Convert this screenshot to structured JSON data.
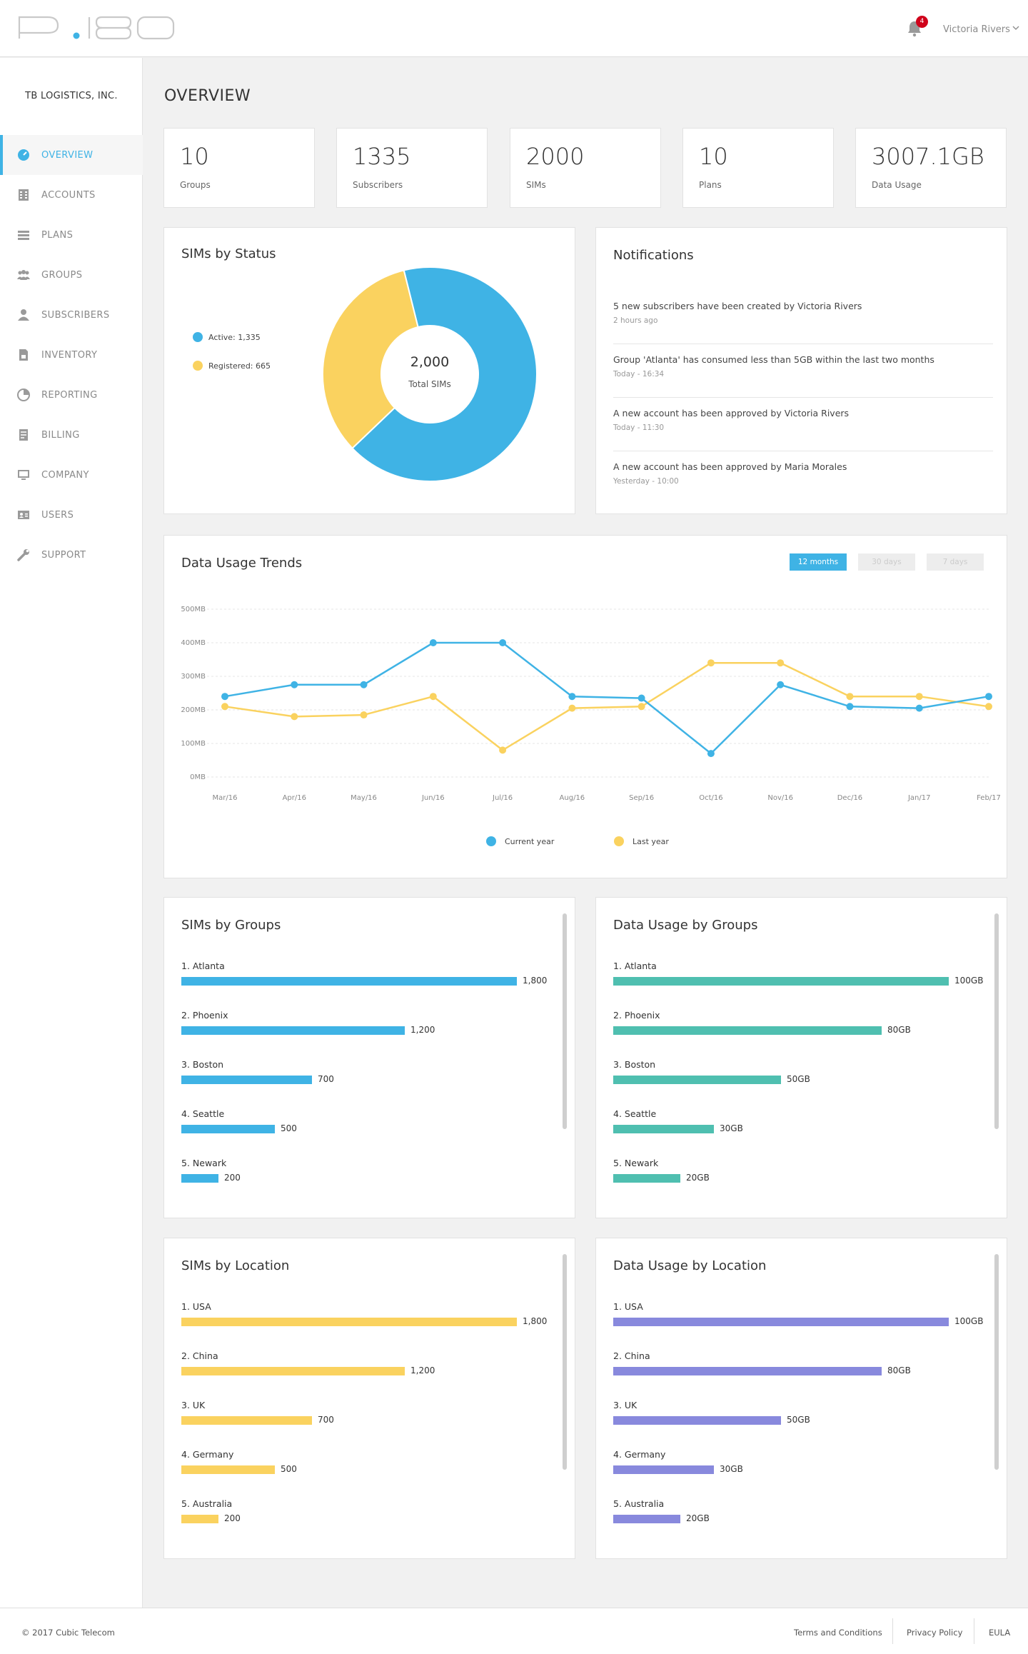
{
  "header": {
    "logo_text": "P.180",
    "notification_count": "4",
    "user_name": "Victoria Rivers"
  },
  "sidebar": {
    "company": "TB LOGISTICS, INC.",
    "items": [
      {
        "label": "OVERVIEW",
        "icon": "overview-icon",
        "active": true
      },
      {
        "label": "ACCOUNTS",
        "icon": "accounts-icon"
      },
      {
        "label": "PLANS",
        "icon": "plans-icon"
      },
      {
        "label": "GROUPS",
        "icon": "groups-icon"
      },
      {
        "label": "SUBSCRIBERS",
        "icon": "subscribers-icon"
      },
      {
        "label": "INVENTORY",
        "icon": "inventory-icon"
      },
      {
        "label": "REPORTING",
        "icon": "reporting-icon"
      },
      {
        "label": "BILLING",
        "icon": "billing-icon"
      },
      {
        "label": "COMPANY",
        "icon": "company-icon"
      },
      {
        "label": "USERS",
        "icon": "users-icon"
      },
      {
        "label": "SUPPORT",
        "icon": "support-icon"
      }
    ]
  },
  "page_title": "OVERVIEW",
  "stats": [
    {
      "value": "10",
      "label": "Groups"
    },
    {
      "value": "1335",
      "label": "Subscribers"
    },
    {
      "value": "2000",
      "label": "SIMs"
    },
    {
      "value": "10",
      "label": "Plans"
    },
    {
      "value": "3007.1GB",
      "label": "Data Usage"
    }
  ],
  "sims_by_status": {
    "title": "SIMs by Status",
    "legend": [
      {
        "label": "Active: 1,335",
        "color": "#3fb3e5"
      },
      {
        "label": "Registered: 665",
        "color": "#fad25f"
      }
    ],
    "center_value": "2,000",
    "center_label": "Total SIMs"
  },
  "notifications": {
    "title": "Notifications",
    "items": [
      {
        "text": "5 new subscribers have been created by Victoria Rivers",
        "time": "2 hours ago"
      },
      {
        "text": "Group 'Atlanta' has consumed less than 5GB within the last two months",
        "time": "Today - 16:34"
      },
      {
        "text": "A new account has been approved by Victoria Rivers",
        "time": "Today - 11:30"
      },
      {
        "text": "A new account has been approved by Maria Morales",
        "time": "Yesterday - 10:00"
      }
    ]
  },
  "trends": {
    "title": "Data Usage Trends",
    "tabs": [
      "12 months",
      "30 days",
      "7 days"
    ],
    "legend": [
      "Current year",
      "Last year"
    ]
  },
  "sims_by_groups": {
    "title": "SIMs by Groups",
    "items": [
      {
        "label": "1. Atlanta",
        "value": "1,800"
      },
      {
        "label": "2. Phoenix",
        "value": "1,200"
      },
      {
        "label": "3. Boston",
        "value": "700"
      },
      {
        "label": "4. Seattle",
        "value": "500"
      },
      {
        "label": "5. Newark",
        "value": "200"
      }
    ]
  },
  "data_by_groups": {
    "title": "Data Usage by Groups",
    "items": [
      {
        "label": "1. Atlanta",
        "value": "100GB"
      },
      {
        "label": "2. Phoenix",
        "value": "80GB"
      },
      {
        "label": "3. Boston",
        "value": "50GB"
      },
      {
        "label": "4. Seattle",
        "value": "30GB"
      },
      {
        "label": "5. Newark",
        "value": "20GB"
      }
    ]
  },
  "sims_by_location": {
    "title": "SIMs by Location",
    "items": [
      {
        "label": "1. USA",
        "value": "1,800"
      },
      {
        "label": "2. China",
        "value": "1,200"
      },
      {
        "label": "3. UK",
        "value": "700"
      },
      {
        "label": "4. Germany",
        "value": "500"
      },
      {
        "label": "5. Australia",
        "value": "200"
      }
    ]
  },
  "data_by_location": {
    "title": "Data Usage by Location",
    "items": [
      {
        "label": "1. USA",
        "value": "100GB"
      },
      {
        "label": "2. China",
        "value": "80GB"
      },
      {
        "label": "3. UK",
        "value": "50GB"
      },
      {
        "label": "4. Germany",
        "value": "30GB"
      },
      {
        "label": "5. Australia",
        "value": "20GB"
      }
    ]
  },
  "footer": {
    "copyright": "© 2017 Cubic Telecom",
    "links": [
      "Terms and Conditions",
      "Privacy Policy",
      "EULA"
    ]
  },
  "colors": {
    "accent": "#3fb3e5",
    "yellow": "#fad25f",
    "teal": "#4fbfb0",
    "purple": "#8889dd"
  },
  "chart_data": [
    {
      "type": "pie",
      "title": "SIMs by Status",
      "labels": [
        "Active",
        "Registered"
      ],
      "values": [
        1335,
        665
      ],
      "colors": [
        "#3fb3e5",
        "#fad25f"
      ]
    },
    {
      "type": "line",
      "title": "Data Usage Trends",
      "categories": [
        "Mar/16",
        "Apr/16",
        "May/16",
        "Jun/16",
        "Jul/16",
        "Aug/16",
        "Sep/16",
        "Oct/16",
        "Nov/16",
        "Dec/16",
        "Jan/17",
        "Feb/17"
      ],
      "yticks": [
        "0MB",
        "100MB",
        "200MB",
        "300MB",
        "400MB",
        "500MB"
      ],
      "ylim": [
        0,
        500
      ],
      "grid": true,
      "series": [
        {
          "name": "Current year",
          "color": "#3fb3e5",
          "values": [
            240,
            275,
            275,
            400,
            400,
            240,
            235,
            70,
            275,
            210,
            205,
            240
          ]
        },
        {
          "name": "Last year",
          "color": "#fad25f",
          "values": [
            210,
            180,
            185,
            240,
            80,
            205,
            210,
            340,
            340,
            240,
            240,
            210
          ]
        }
      ]
    },
    {
      "type": "bar",
      "title": "SIMs by Groups",
      "categories": [
        "Atlanta",
        "Phoenix",
        "Boston",
        "Seattle",
        "Newark"
      ],
      "values": [
        1800,
        1200,
        700,
        500,
        200
      ],
      "color": "#3fb3e5"
    },
    {
      "type": "bar",
      "title": "Data Usage by Groups",
      "categories": [
        "Atlanta",
        "Phoenix",
        "Boston",
        "Seattle",
        "Newark"
      ],
      "values": [
        100,
        80,
        50,
        30,
        20
      ],
      "color": "#4fbfb0"
    },
    {
      "type": "bar",
      "title": "SIMs by Location",
      "categories": [
        "USA",
        "China",
        "UK",
        "Germany",
        "Australia"
      ],
      "values": [
        1800,
        1200,
        700,
        500,
        200
      ],
      "color": "#fad25f"
    },
    {
      "type": "bar",
      "title": "Data Usage by Location",
      "categories": [
        "USA",
        "China",
        "UK",
        "Germany",
        "Australia"
      ],
      "values": [
        100,
        80,
        50,
        30,
        20
      ],
      "color": "#8889dd"
    }
  ]
}
